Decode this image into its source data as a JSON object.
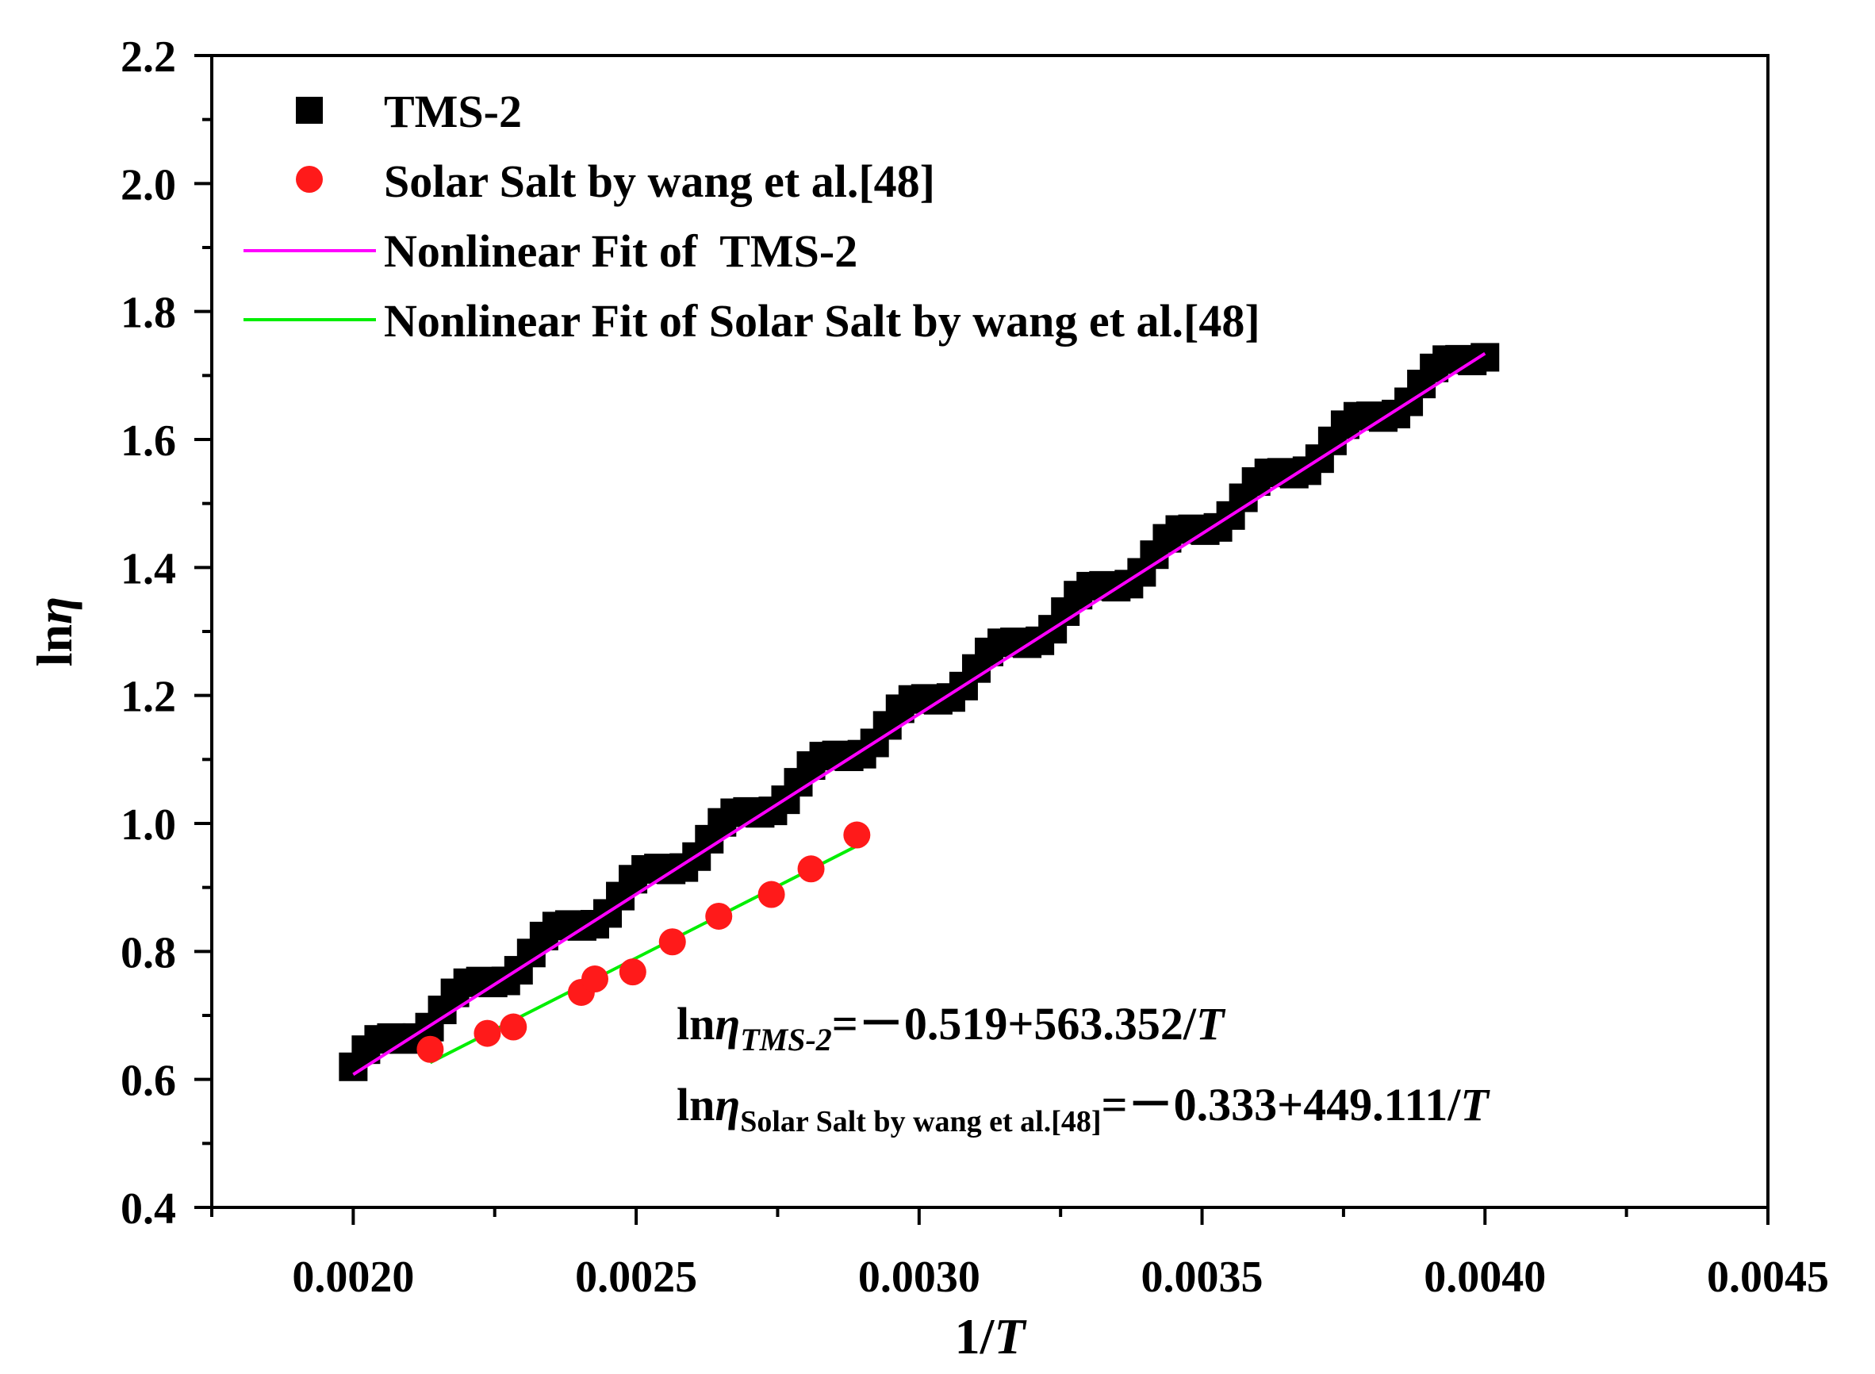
{
  "chart_data": {
    "type": "scatter",
    "xlabel": {
      "prefix": "1/",
      "italic": "T"
    },
    "ylabel": {
      "prefix": "ln",
      "italic": "η"
    },
    "xlim": [
      0.00175,
      0.0045
    ],
    "ylim": [
      0.4,
      2.2
    ],
    "xticks": [
      0.002,
      0.0025,
      0.003,
      0.0035,
      0.004,
      0.0045
    ],
    "xtick_labels": [
      "0.0020",
      "0.0025",
      "0.0030",
      "0.0035",
      "0.0040",
      "0.0045"
    ],
    "yticks": [
      0.4,
      0.6,
      0.8,
      1.0,
      1.2,
      1.4,
      1.6,
      1.8,
      2.0,
      2.2
    ],
    "ytick_labels": [
      "0.4",
      "0.6",
      "0.8",
      "1.0",
      "1.2",
      "1.4",
      "1.6",
      "1.8",
      "2.0",
      "2.2"
    ],
    "legend": {
      "position": "top-left",
      "entries": [
        "TMS-2",
        "Solar Salt by wang et al.[48]",
        "Nonlinear Fit of  TMS-2",
        "Nonlinear Fit of Solar Salt by wang et al.[48]"
      ]
    },
    "series": [
      {
        "name": "TMS-2",
        "marker": "square",
        "color": "#000000",
        "x_range": [
          0.002,
          0.004
        ],
        "n_points": 90,
        "fit": {
          "intercept": -0.519,
          "slope": 563.352
        }
      },
      {
        "name": "Solar Salt by wang et al.[48]",
        "marker": "circle",
        "color": "#ff1a1a",
        "x": [
          0.002136,
          0.002237,
          0.002283,
          0.002403,
          0.002427,
          0.002494,
          0.002564,
          0.002646,
          0.002739,
          0.002809,
          0.00289
        ],
        "y": [
          0.647,
          0.672,
          0.682,
          0.736,
          0.757,
          0.768,
          0.815,
          0.855,
          0.889,
          0.929,
          0.982
        ]
      }
    ],
    "fits": [
      {
        "name": "Nonlinear Fit of  TMS-2",
        "color": "#ff00ff",
        "intercept": -0.519,
        "slope": 563.352,
        "x_range": [
          0.002,
          0.004
        ]
      },
      {
        "name": "Nonlinear Fit of Solar Salt by wang et al.[48]",
        "color": "#00ee00",
        "intercept": -0.333,
        "slope": 449.111,
        "x_range": [
          0.002136,
          0.00289
        ]
      }
    ],
    "annotations": [
      {
        "lhs": "ln",
        "eta": "η",
        "sub": "TMS-2",
        "rhs": "=－0.519+563.352/",
        "T": "T"
      },
      {
        "lhs": "ln",
        "eta": "η",
        "sub": "Solar Salt by wang et al.[48]",
        "rhs": "=－0.333+449.111/",
        "T": "T"
      }
    ]
  }
}
